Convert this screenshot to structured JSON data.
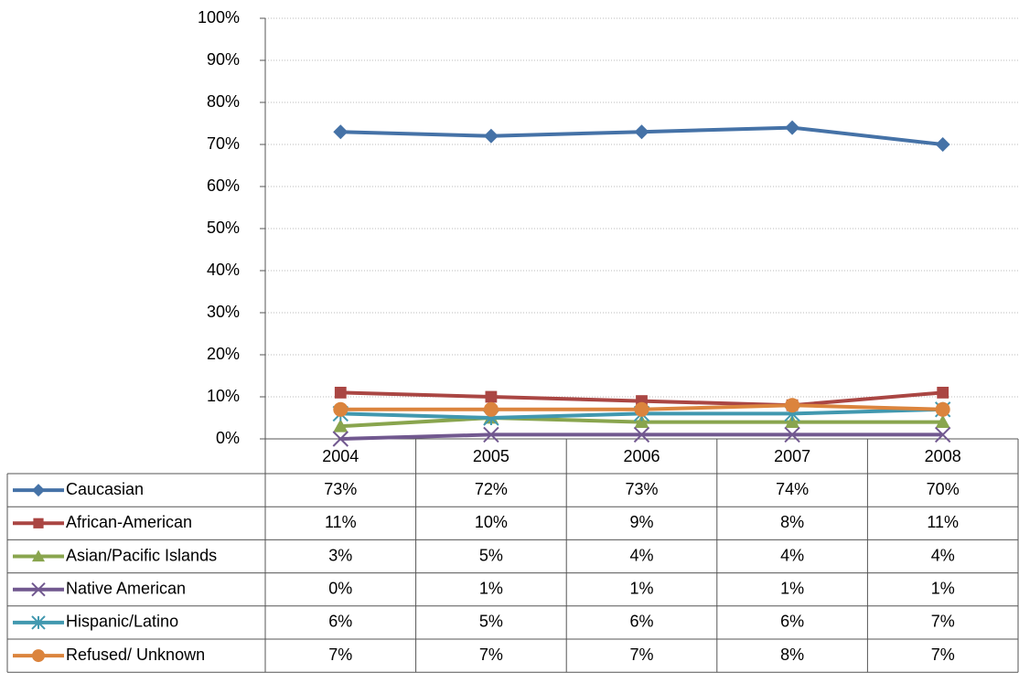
{
  "chart_data": {
    "type": "line",
    "categories": [
      "2004",
      "2005",
      "2006",
      "2007",
      "2008"
    ],
    "ylim": [
      0,
      100
    ],
    "yticks": [
      {
        "value": 0,
        "label": "0%"
      },
      {
        "value": 10,
        "label": "10%"
      },
      {
        "value": 20,
        "label": "20%"
      },
      {
        "value": 30,
        "label": "30%"
      },
      {
        "value": 40,
        "label": "40%"
      },
      {
        "value": 50,
        "label": "50%"
      },
      {
        "value": 60,
        "label": "60%"
      },
      {
        "value": 70,
        "label": "70%"
      },
      {
        "value": 80,
        "label": "80%"
      },
      {
        "value": 90,
        "label": "90%"
      },
      {
        "value": 100,
        "label": "100%"
      }
    ],
    "grid": true,
    "series": [
      {
        "name": "Caucasian",
        "color": "#4572a7",
        "marker": "diamond",
        "values": [
          73,
          72,
          73,
          74,
          70
        ],
        "value_labels": [
          "73%",
          "72%",
          "73%",
          "74%",
          "70%"
        ]
      },
      {
        "name": "African-American",
        "color": "#aa4643",
        "marker": "square",
        "values": [
          11,
          10,
          9,
          8,
          11
        ],
        "value_labels": [
          "11%",
          "10%",
          "9%",
          "8%",
          "11%"
        ]
      },
      {
        "name": "Asian/Pacific Islands",
        "color": "#89a54e",
        "marker": "triangle",
        "values": [
          3,
          5,
          4,
          4,
          4
        ],
        "value_labels": [
          "3%",
          "5%",
          "4%",
          "4%",
          "4%"
        ]
      },
      {
        "name": "Native American",
        "color": "#71588f",
        "marker": "x",
        "values": [
          0,
          1,
          1,
          1,
          1
        ],
        "value_labels": [
          "0%",
          "1%",
          "1%",
          "1%",
          "1%"
        ]
      },
      {
        "name": "Hispanic/Latino",
        "color": "#4198af",
        "marker": "star",
        "values": [
          6,
          5,
          6,
          6,
          7
        ],
        "value_labels": [
          "6%",
          "5%",
          "6%",
          "6%",
          "7%"
        ]
      },
      {
        "name": "Refused/ Unknown",
        "color": "#db843d",
        "marker": "circle",
        "values": [
          7,
          7,
          7,
          8,
          7
        ],
        "value_labels": [
          "7%",
          "7%",
          "7%",
          "8%",
          "7%"
        ]
      }
    ]
  }
}
